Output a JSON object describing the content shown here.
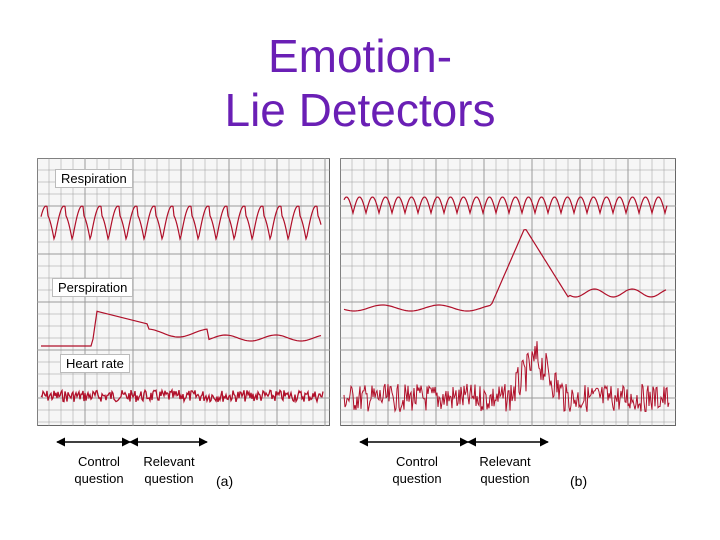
{
  "title": {
    "line1": "Emotion-",
    "line2": "Lie Detectors"
  },
  "channels": {
    "respiration": "Respiration",
    "perspiration": "Perspiration",
    "heart_rate": "Heart rate"
  },
  "panel_a": {
    "id": "(a)",
    "control": "Control question",
    "relevant": "Relevant question"
  },
  "panel_b": {
    "id": "(b)",
    "control": "Control question",
    "relevant": "Relevant question"
  },
  "colors": {
    "title": "#6a1fb5",
    "trace": "#b0102a",
    "grid": "#9a9a9a",
    "panel_bg": "#f6f6f6"
  }
}
